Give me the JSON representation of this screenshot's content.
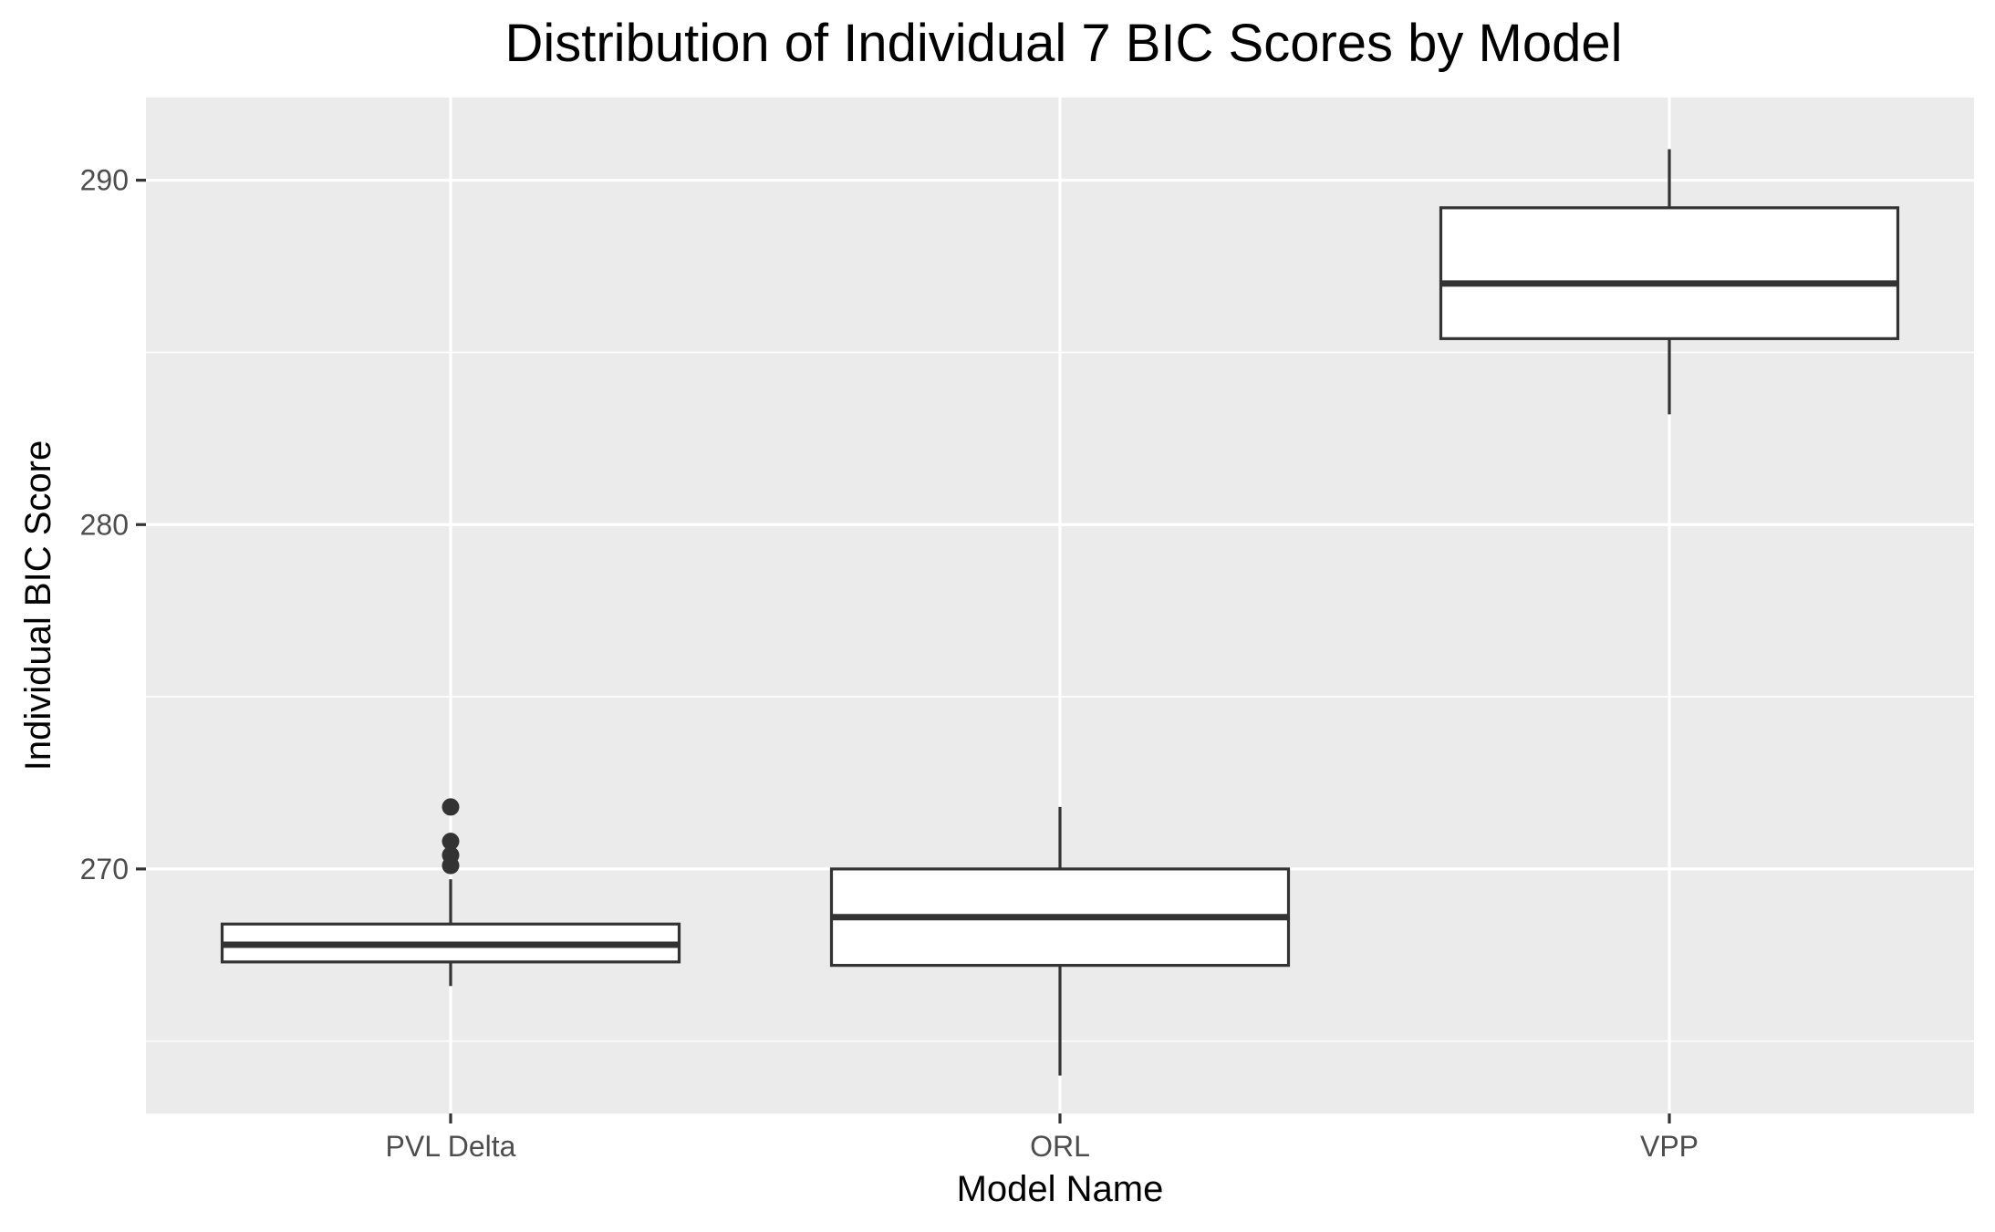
{
  "chart_data": {
    "type": "box",
    "title": "Distribution of Individual 7 BIC Scores by Model",
    "xlabel": "Model Name",
    "ylabel": "Individual BIC Score",
    "ylim": [
      262.9,
      292.4
    ],
    "yticks": [
      270,
      280,
      290
    ],
    "ytick_labels": [
      "270",
      "280",
      "290"
    ],
    "grid": true,
    "panel_background": "#ebebeb",
    "grid_color": "#ffffff",
    "box_color": "#333333",
    "categories": [
      "PVL Delta",
      "ORL",
      "VPP"
    ],
    "boxes": [
      {
        "category": "PVL Delta",
        "whisker_low": 266.6,
        "q1": 267.3,
        "median": 267.8,
        "q3": 268.4,
        "whisker_high": 269.7,
        "outliers": [
          270.1,
          270.4,
          270.8,
          271.8
        ]
      },
      {
        "category": "ORL",
        "whisker_low": 264.0,
        "q1": 267.2,
        "median": 268.6,
        "q3": 270.0,
        "whisker_high": 271.8,
        "outliers": []
      },
      {
        "category": "VPP",
        "whisker_low": 283.2,
        "q1": 285.4,
        "median": 287.0,
        "q3": 289.2,
        "whisker_high": 290.9,
        "outliers": []
      }
    ]
  }
}
